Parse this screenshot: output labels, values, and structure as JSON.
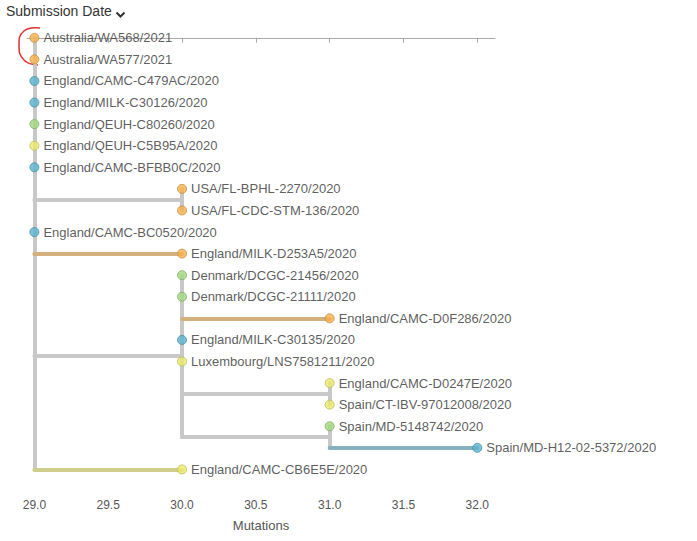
{
  "chart_data": {
    "type": "tree",
    "title": "Submission Date",
    "x_label": "Mutations",
    "xlim": [
      28.95,
      32.12
    ],
    "xticks": [
      {
        "value": 29,
        "label": "29.0"
      },
      29.5,
      {
        "value": 30,
        "label": "30.0"
      },
      30.5,
      {
        "value": 31,
        "label": "31.0"
      },
      31.5,
      {
        "value": 32,
        "label": "32.0"
      }
    ],
    "grid": false,
    "tick_labels": "x",
    "tree": {
      "x": 29,
      "children": [
        {
          "name": "Australia/WA568/2021",
          "x": 29,
          "color": "#f6b04b"
        },
        {
          "name": "Australia/WA577/2021",
          "x": 29,
          "color": "#f6b04b"
        },
        {
          "name": "England/CAMC-C479AC/2020",
          "x": 29,
          "color": "#5bb3cf"
        },
        {
          "name": "England/MILK-C30126/2020",
          "x": 29,
          "color": "#5bb3cf"
        },
        {
          "name": "England/QEUH-C80260/2020",
          "x": 29,
          "color": "#a3d87f"
        },
        {
          "name": "England/QEUH-C5B95A/2020",
          "x": 29,
          "color": "#ecea6c"
        },
        {
          "name": "England/CAMC-BFBB0C/2020",
          "x": 29,
          "color": "#5bb3cf"
        },
        {
          "x": 30,
          "children": [
            {
              "name": "USA/FL-BPHL-2270/2020",
              "x": 30,
              "color": "#f6b04b"
            },
            {
              "name": "USA/FL-CDC-STM-136/2020",
              "x": 30,
              "color": "#f6b04b"
            }
          ]
        },
        {
          "name": "England/CAMC-BC0520/2020",
          "x": 29,
          "color": "#5bb3cf"
        },
        {
          "name": "England/MILK-D253A5/2020",
          "x": 30,
          "color": "#f6b04b"
        },
        {
          "x": 30,
          "children": [
            {
              "name": "Denmark/DCGC-21456/2020",
              "x": 30,
              "color": "#a3d87f"
            },
            {
              "name": "Denmark/DCGC-21111/2020",
              "x": 30,
              "color": "#a3d87f"
            },
            {
              "name": "England/CAMC-D0F286/2020",
              "x": 31,
              "color": "#f6b04b"
            },
            {
              "name": "England/MILK-C30135/2020",
              "x": 30,
              "color": "#5bb3cf"
            },
            {
              "name": "Luxembourg/LNS7581211/2020",
              "x": 30,
              "color": "#ecea6c"
            },
            {
              "x": 31,
              "children": [
                {
                  "name": "England/CAMC-D0247E/2020",
                  "x": 31,
                  "color": "#ecea6c"
                },
                {
                  "name": "Spain/CT-IBV-97012008/2020",
                  "x": 31,
                  "color": "#ecea6c"
                }
              ]
            },
            {
              "x": 31,
              "children": [
                {
                  "name": "Spain/MD-5148742/2020",
                  "x": 31,
                  "color": "#a3d87f"
                },
                {
                  "name": "Spain/MD-H12-02-5372/2020",
                  "x": 32,
                  "color": "#5bb3cf"
                }
              ]
            }
          ]
        },
        {
          "name": "England/CAMC-CB6E5E/2020",
          "x": 30,
          "color": "#ecea6c"
        }
      ]
    }
  }
}
